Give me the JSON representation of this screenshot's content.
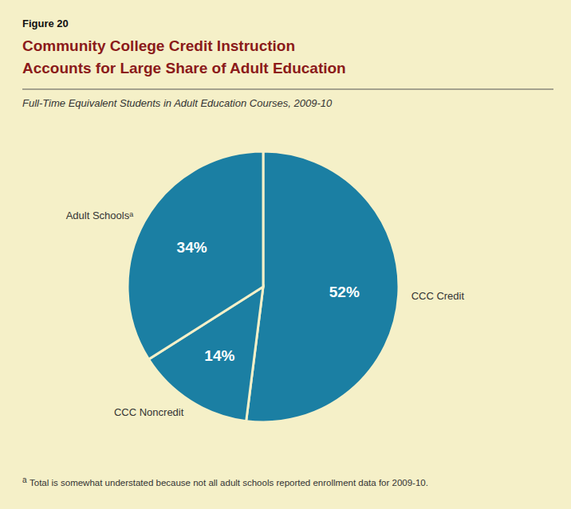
{
  "chart_data": {
    "type": "pie",
    "figure_label": "Figure 20",
    "title": [
      "Community College Credit Instruction",
      "Accounts for Large Share of Adult Education"
    ],
    "subtitle": "Full-Time Equivalent Students in Adult Education Courses, 2009-10",
    "categories": [
      "CCC Credit",
      "CCC Noncredit",
      "Adult Schoolsᵃ"
    ],
    "values": [
      52,
      14,
      34
    ],
    "value_labels": [
      "52%",
      "14%",
      "34%"
    ],
    "data_labels": true,
    "color": "#1B7FA3",
    "footnote_marker": "a",
    "footnote": "Total is somewhat understated because not all adult schools reported enrollment data for 2009-10."
  }
}
